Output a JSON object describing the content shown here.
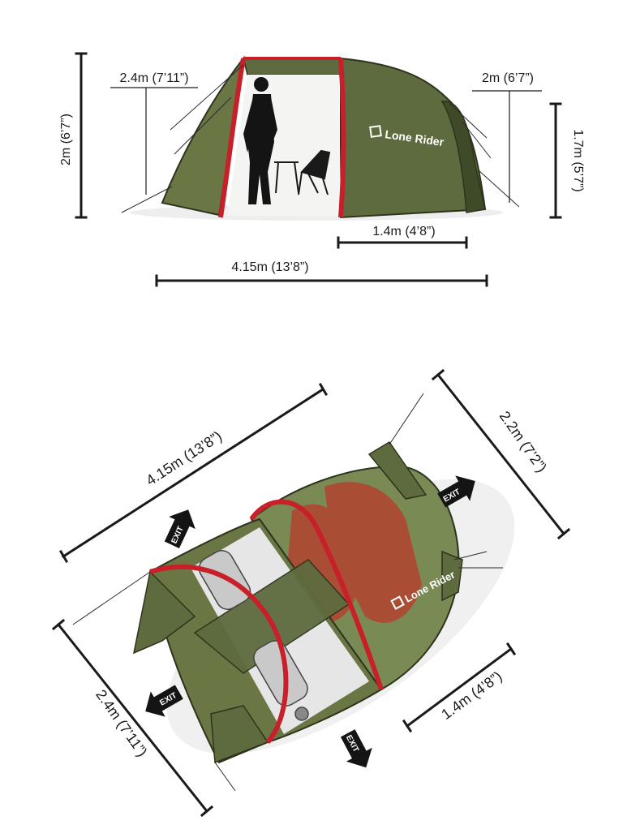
{
  "side_view": {
    "height_total": "2m (6’7”)",
    "height_entrance": "2.4m (7’11”)",
    "height_rear_top": "2m (6’7”)",
    "height_rear": "1.7m (5’7”)",
    "vestibule_length": "1.4m (4’8”)",
    "total_length": "4.15m (13’8”)",
    "brand_label": "Lone Rider"
  },
  "top_view": {
    "total_length": "4.15m (13’8”)",
    "width_rear": "2.2m (7’2”)",
    "width_front": "2.4m (7’11”)",
    "vestibule_length": "1.4m (4’8”)",
    "brand_label": "Lone Rider",
    "exit_label": "EXIT"
  },
  "colors": {
    "tent_green": "#5e6b3e",
    "tent_green_dark": "#3f4a28",
    "pole_red": "#c8202a",
    "inner_red": "#b93a2b"
  }
}
